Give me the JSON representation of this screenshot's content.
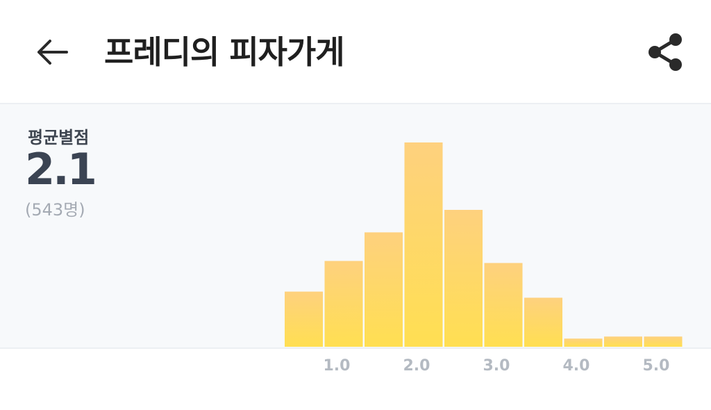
{
  "header": {
    "title": "프레디의 피자가게",
    "back_icon": "arrow-left-icon",
    "share_icon": "share-icon"
  },
  "rating": {
    "label": "평균별점",
    "value": "2.1",
    "count": "(543명)"
  },
  "colors": {
    "bar_top": "#fed17e",
    "bar_bottom": "#ffdf52",
    "section_bg": "#f7f9fb"
  },
  "chart_data": {
    "type": "bar",
    "title": "",
    "xlabel": "",
    "ylabel": "",
    "x_ticks": [
      "1.0",
      "2.0",
      "3.0",
      "4.0",
      "5.0"
    ],
    "bins": [
      0.5,
      1.0,
      1.5,
      2.0,
      2.5,
      3.0,
      3.5,
      4.0,
      4.5,
      5.0
    ],
    "values": [
      27,
      42,
      56,
      100,
      67,
      41,
      24,
      4,
      5,
      5
    ],
    "ylim": [
      0,
      100
    ]
  }
}
